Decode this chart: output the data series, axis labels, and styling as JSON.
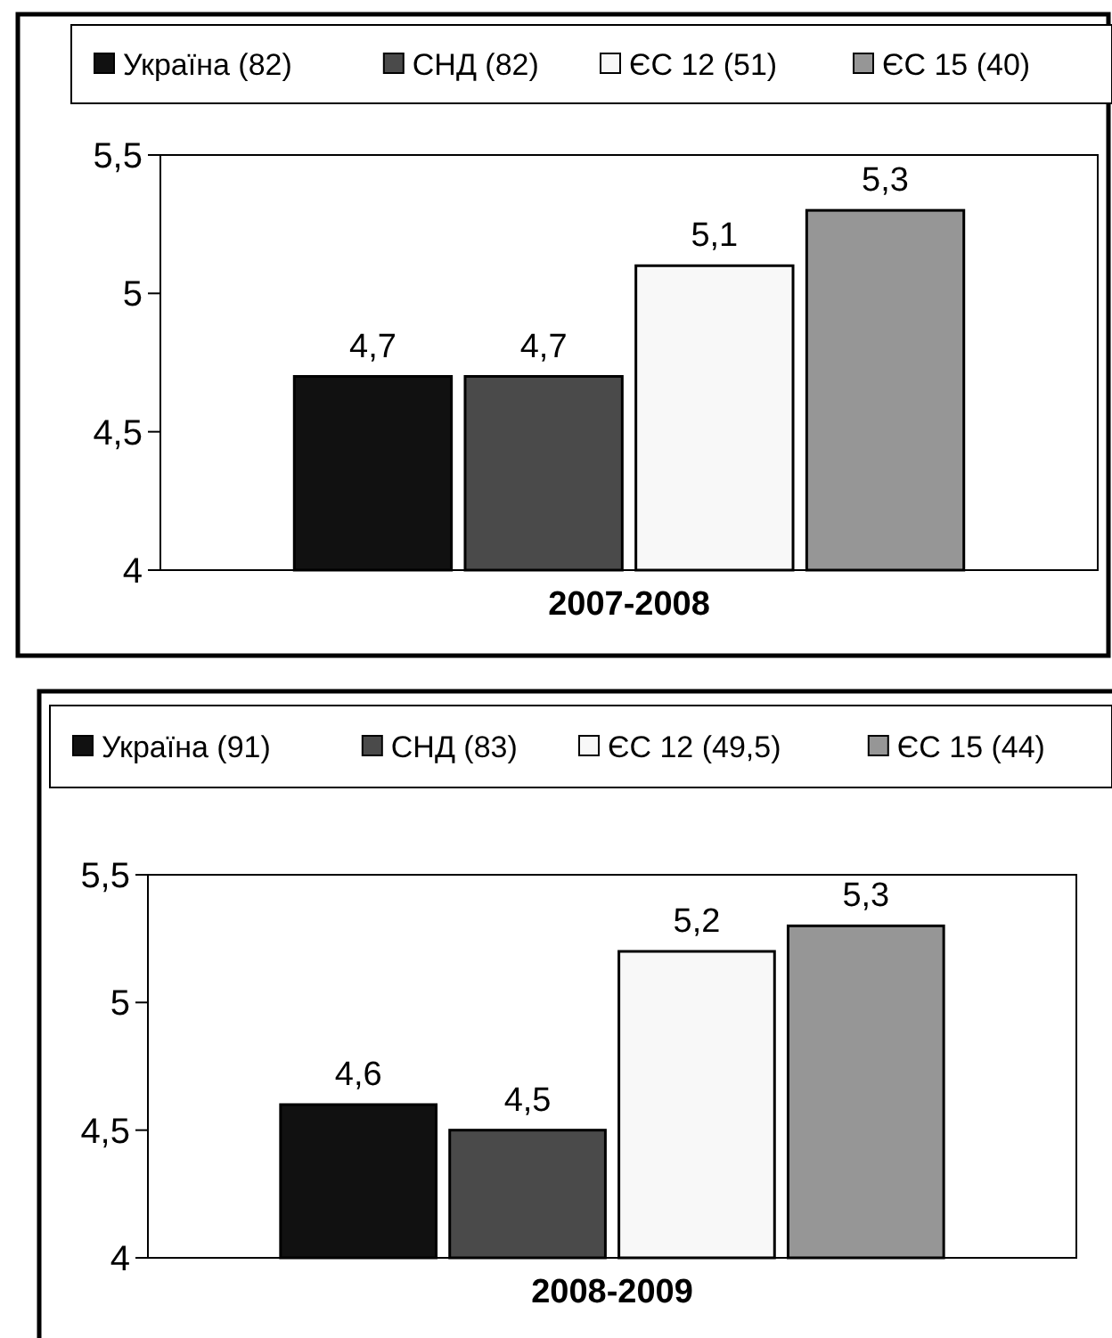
{
  "chart_data": [
    {
      "type": "bar",
      "categories": [
        null
      ],
      "xlabel": "2007-2008",
      "ylim": [
        4,
        5.5
      ],
      "yticks": [
        {
          "value": 4,
          "label": "4"
        },
        {
          "value": 4.5,
          "label": "4,5"
        },
        {
          "value": 5,
          "label": "5"
        },
        {
          "value": 5.5,
          "label": "5,5"
        }
      ],
      "legend": "top",
      "grid": false,
      "series": [
        {
          "name": "Україна (82)",
          "color": "#111111",
          "values": [
            4.7
          ],
          "value_labels": [
            "4,7"
          ]
        },
        {
          "name": "СНД (82)",
          "color": "#4a4a4a",
          "values": [
            4.7
          ],
          "value_labels": [
            "4,7"
          ]
        },
        {
          "name": "ЄС 12 (51)",
          "color": "#f8f8f8",
          "values": [
            5.1
          ],
          "value_labels": [
            "5,1"
          ]
        },
        {
          "name": "ЄС 15 (40)",
          "color": "#969696",
          "values": [
            5.3
          ],
          "value_labels": [
            "5,3"
          ]
        }
      ]
    },
    {
      "type": "bar",
      "categories": [
        null
      ],
      "xlabel": "2008-2009",
      "ylim": [
        4,
        5.5
      ],
      "yticks": [
        {
          "value": 4,
          "label": "4"
        },
        {
          "value": 4.5,
          "label": "4,5"
        },
        {
          "value": 5,
          "label": "5"
        },
        {
          "value": 5.5,
          "label": "5,5"
        }
      ],
      "legend": "top",
      "grid": false,
      "series": [
        {
          "name": "Україна (91)",
          "color": "#111111",
          "values": [
            4.6
          ],
          "value_labels": [
            "4,6"
          ]
        },
        {
          "name": "СНД (83)",
          "color": "#4a4a4a",
          "values": [
            4.5
          ],
          "value_labels": [
            "4,5"
          ]
        },
        {
          "name": "ЄС 12 (49,5)",
          "color": "#f8f8f8",
          "values": [
            5.2
          ],
          "value_labels": [
            "5,2"
          ]
        },
        {
          "name": "ЄС 15 (44)",
          "color": "#969696",
          "values": [
            5.3
          ],
          "value_labels": [
            "5,3"
          ]
        }
      ]
    }
  ]
}
